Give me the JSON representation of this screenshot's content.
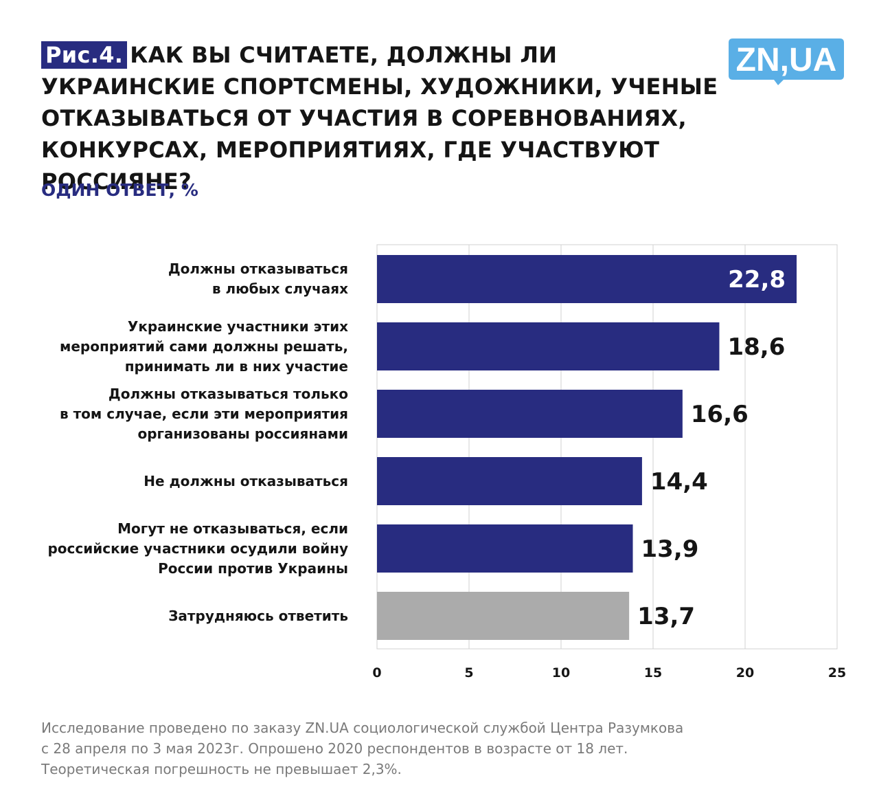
{
  "header": {
    "figure_tag": "Рис.4.",
    "title_lines": [
      "КАК ВЫ СЧИТАЕТЕ, ДОЛЖНЫ ЛИ",
      "УКРАИНСКИЕ СПОРТСМЕНЫ, ХУДОЖНИКИ, УЧЕНЫЕ",
      "ОТКАЗЫВАТЬСЯ ОТ УЧАСТИЯ В СОРЕВНОВАНИЯХ,",
      "КОНКУРСАХ, МЕРОПРИЯТИЯХ, ГДЕ УЧАСТВУЮТ РОССИЯНЕ?"
    ],
    "subtitle": "ОДИН ОТВЕТ, %",
    "logo_text": "ZN,UA"
  },
  "colors": {
    "bar_primary": "#282c80",
    "bar_neutral": "#ababab",
    "logo_blue": "#5aafe6",
    "value_inside": "#ffffff",
    "value_outside": "#151515"
  },
  "chart_data": {
    "type": "bar",
    "orientation": "horizontal",
    "categories": [
      [
        "Должны отказываться",
        "в любых случаях"
      ],
      [
        "Украинские участники этих",
        "мероприятий сами должны решать,",
        "принимать ли в них участие"
      ],
      [
        "Должны отказываться только",
        "в том случае, если эти мероприятия",
        "организованы россиянами"
      ],
      [
        "Не должны отказываться"
      ],
      [
        "Могут не отказываться, если",
        "российские участники осудили войну",
        "России против Украины"
      ],
      [
        "Затрудняюсь ответить"
      ]
    ],
    "values": [
      22.8,
      18.6,
      16.6,
      14.4,
      13.9,
      13.7
    ],
    "value_labels": [
      "22,8",
      "18,6",
      "16,6",
      "14,4",
      "13,9",
      "13,7"
    ],
    "bar_colors": [
      "#282c80",
      "#282c80",
      "#282c80",
      "#282c80",
      "#282c80",
      "#ababab"
    ],
    "xlim": [
      0,
      25
    ],
    "xticks": [
      "0",
      "5",
      "10",
      "15",
      "20",
      "25"
    ],
    "grid": true
  },
  "footnote": [
    "Исследование проведено по заказу ZN.UA социологической службой Центра Разумкова",
    "с 28 апреля по 3 мая 2023г. Опрошено 2020 респондентов в возрасте от 18 лет.",
    "Теоретическая погрешность не превышает 2,3%."
  ]
}
